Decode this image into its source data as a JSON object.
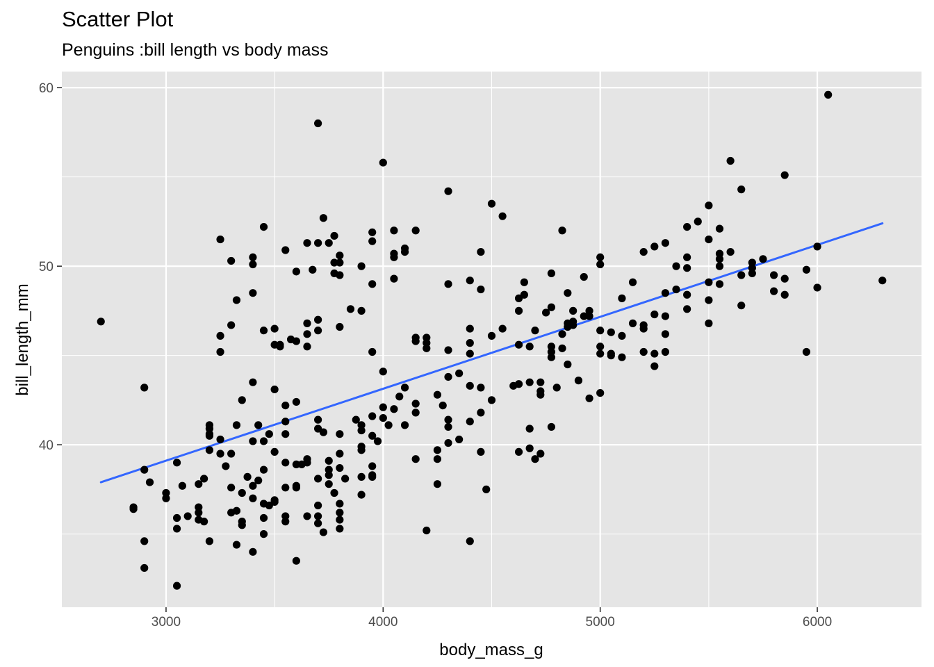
{
  "chart_data": {
    "type": "scatter",
    "title": "Scatter Plot",
    "subtitle": "Penguins :bill length vs body mass",
    "xlabel": "body_mass_g",
    "ylabel": "bill_length_mm",
    "xlim": [
      2520,
      6480
    ],
    "ylim": [
      30.9,
      60.9
    ],
    "xticks": [
      3000,
      4000,
      5000,
      6000
    ],
    "yticks": [
      40,
      50,
      60
    ],
    "grid": true,
    "colors": {
      "panel": "#e5e5e5",
      "grid": "#ffffff",
      "points": "#000000",
      "trend": "#3366ff"
    },
    "trend_line": {
      "x": [
        2700,
        6300
      ],
      "y": [
        37.9,
        52.4
      ]
    },
    "points": [
      [
        2700,
        46.9
      ],
      [
        2850,
        36.5
      ],
      [
        2850,
        36.4
      ],
      [
        2900,
        43.2
      ],
      [
        2900,
        38.6
      ],
      [
        2900,
        34.6
      ],
      [
        2900,
        33.1
      ],
      [
        2925,
        37.9
      ],
      [
        3000,
        37.3
      ],
      [
        3000,
        37.0
      ],
      [
        3050,
        39.0
      ],
      [
        3050,
        35.9
      ],
      [
        3050,
        35.3
      ],
      [
        3050,
        32.1
      ],
      [
        3075,
        37.7
      ],
      [
        3100,
        36.0
      ],
      [
        3150,
        37.8
      ],
      [
        3150,
        36.5
      ],
      [
        3150,
        36.2
      ],
      [
        3150,
        35.8
      ],
      [
        3175,
        38.1
      ],
      [
        3175,
        35.7
      ],
      [
        3200,
        41.1
      ],
      [
        3200,
        40.9
      ],
      [
        3200,
        40.6
      ],
      [
        3200,
        40.5
      ],
      [
        3200,
        39.7
      ],
      [
        3200,
        34.6
      ],
      [
        3250,
        51.5
      ],
      [
        3250,
        46.1
      ],
      [
        3250,
        45.2
      ],
      [
        3250,
        40.3
      ],
      [
        3250,
        39.5
      ],
      [
        3275,
        38.8
      ],
      [
        3300,
        50.3
      ],
      [
        3300,
        46.7
      ],
      [
        3300,
        39.5
      ],
      [
        3300,
        37.6
      ],
      [
        3300,
        36.2
      ],
      [
        3325,
        48.1
      ],
      [
        3325,
        41.1
      ],
      [
        3325,
        36.3
      ],
      [
        3325,
        34.4
      ],
      [
        3350,
        42.5
      ],
      [
        3350,
        37.3
      ],
      [
        3350,
        35.7
      ],
      [
        3350,
        35.5
      ],
      [
        3375,
        38.2
      ],
      [
        3400,
        50.5
      ],
      [
        3400,
        50.1
      ],
      [
        3400,
        48.5
      ],
      [
        3400,
        43.5
      ],
      [
        3400,
        40.2
      ],
      [
        3400,
        37.7
      ],
      [
        3400,
        37.0
      ],
      [
        3400,
        34.0
      ],
      [
        3425,
        41.1
      ],
      [
        3425,
        38.0
      ],
      [
        3450,
        52.2
      ],
      [
        3450,
        46.4
      ],
      [
        3450,
        40.2
      ],
      [
        3450,
        38.6
      ],
      [
        3450,
        36.7
      ],
      [
        3450,
        35.9
      ],
      [
        3450,
        35.0
      ],
      [
        3475,
        40.6
      ],
      [
        3475,
        36.6
      ],
      [
        3500,
        46.5
      ],
      [
        3500,
        45.6
      ],
      [
        3500,
        43.1
      ],
      [
        3500,
        39.6
      ],
      [
        3500,
        36.9
      ],
      [
        3500,
        36.8
      ],
      [
        3525,
        45.5
      ],
      [
        3525,
        45.6
      ],
      [
        3550,
        50.9
      ],
      [
        3550,
        42.2
      ],
      [
        3550,
        41.3
      ],
      [
        3550,
        40.6
      ],
      [
        3550,
        39.0
      ],
      [
        3550,
        37.6
      ],
      [
        3550,
        36.0
      ],
      [
        3550,
        35.7
      ],
      [
        3575,
        45.9
      ],
      [
        3600,
        49.7
      ],
      [
        3600,
        45.8
      ],
      [
        3600,
        42.4
      ],
      [
        3600,
        38.9
      ],
      [
        3600,
        37.7
      ],
      [
        3600,
        37.6
      ],
      [
        3600,
        33.5
      ],
      [
        3625,
        38.9
      ],
      [
        3650,
        51.3
      ],
      [
        3650,
        46.8
      ],
      [
        3650,
        46.2
      ],
      [
        3650,
        45.5
      ],
      [
        3650,
        39.2
      ],
      [
        3650,
        39.0
      ],
      [
        3650,
        36.0
      ],
      [
        3675,
        49.8
      ],
      [
        3700,
        58.0
      ],
      [
        3700,
        51.3
      ],
      [
        3700,
        47.0
      ],
      [
        3700,
        46.4
      ],
      [
        3700,
        41.4
      ],
      [
        3700,
        40.9
      ],
      [
        3700,
        38.1
      ],
      [
        3700,
        36.6
      ],
      [
        3700,
        36.0
      ],
      [
        3700,
        35.6
      ],
      [
        3725,
        52.7
      ],
      [
        3725,
        40.7
      ],
      [
        3725,
        35.1
      ],
      [
        3750,
        51.3
      ],
      [
        3750,
        39.1
      ],
      [
        3750,
        38.6
      ],
      [
        3750,
        38.3
      ],
      [
        3750,
        37.8
      ],
      [
        3775,
        51.7
      ],
      [
        3775,
        50.2
      ],
      [
        3775,
        49.6
      ],
      [
        3775,
        37.3
      ],
      [
        3800,
        50.6
      ],
      [
        3800,
        50.2
      ],
      [
        3800,
        49.5
      ],
      [
        3800,
        46.6
      ],
      [
        3800,
        40.6
      ],
      [
        3800,
        39.5
      ],
      [
        3800,
        38.7
      ],
      [
        3800,
        36.7
      ],
      [
        3800,
        36.2
      ],
      [
        3800,
        35.8
      ],
      [
        3800,
        35.3
      ],
      [
        3825,
        38.1
      ],
      [
        3850,
        47.6
      ],
      [
        3875,
        41.4
      ],
      [
        3900,
        50.0
      ],
      [
        3900,
        47.5
      ],
      [
        3900,
        41.1
      ],
      [
        3900,
        40.8
      ],
      [
        3900,
        39.9
      ],
      [
        3900,
        39.7
      ],
      [
        3900,
        38.2
      ],
      [
        3900,
        37.2
      ],
      [
        3950,
        51.9
      ],
      [
        3950,
        51.4
      ],
      [
        3950,
        49.0
      ],
      [
        3950,
        45.2
      ],
      [
        3950,
        41.6
      ],
      [
        3950,
        40.5
      ],
      [
        3950,
        38.8
      ],
      [
        3950,
        38.3
      ],
      [
        3950,
        38.2
      ],
      [
        3975,
        40.2
      ],
      [
        4000,
        55.8
      ],
      [
        4000,
        44.1
      ],
      [
        4000,
        42.1
      ],
      [
        4000,
        41.5
      ],
      [
        4025,
        41.1
      ],
      [
        4050,
        52.0
      ],
      [
        4050,
        50.7
      ],
      [
        4050,
        50.5
      ],
      [
        4050,
        49.3
      ],
      [
        4050,
        42.0
      ],
      [
        4075,
        42.7
      ],
      [
        4100,
        51.0
      ],
      [
        4100,
        50.8
      ],
      [
        4100,
        43.2
      ],
      [
        4100,
        41.1
      ],
      [
        4150,
        52.0
      ],
      [
        4150,
        46.0
      ],
      [
        4150,
        45.8
      ],
      [
        4150,
        42.3
      ],
      [
        4150,
        41.8
      ],
      [
        4150,
        39.2
      ],
      [
        4200,
        46.0
      ],
      [
        4200,
        45.7
      ],
      [
        4200,
        45.4
      ],
      [
        4200,
        35.2
      ],
      [
        4250,
        42.8
      ],
      [
        4250,
        39.7
      ],
      [
        4250,
        39.2
      ],
      [
        4250,
        37.8
      ],
      [
        4275,
        42.2
      ],
      [
        4300,
        54.2
      ],
      [
        4300,
        49.0
      ],
      [
        4300,
        45.3
      ],
      [
        4300,
        43.8
      ],
      [
        4300,
        41.4
      ],
      [
        4300,
        41.0
      ],
      [
        4300,
        40.1
      ],
      [
        4350,
        44.0
      ],
      [
        4350,
        40.3
      ],
      [
        4400,
        49.2
      ],
      [
        4400,
        46.5
      ],
      [
        4400,
        45.7
      ],
      [
        4400,
        45.1
      ],
      [
        4400,
        43.3
      ],
      [
        4400,
        41.3
      ],
      [
        4400,
        34.6
      ],
      [
        4450,
        50.8
      ],
      [
        4450,
        48.7
      ],
      [
        4450,
        43.2
      ],
      [
        4450,
        41.8
      ],
      [
        4450,
        39.6
      ],
      [
        4475,
        37.5
      ],
      [
        4500,
        53.5
      ],
      [
        4500,
        46.1
      ],
      [
        4500,
        42.5
      ],
      [
        4550,
        52.8
      ],
      [
        4550,
        46.5
      ],
      [
        4600,
        43.3
      ],
      [
        4625,
        48.2
      ],
      [
        4625,
        47.5
      ],
      [
        4625,
        45.6
      ],
      [
        4625,
        43.4
      ],
      [
        4625,
        39.6
      ],
      [
        4650,
        48.4
      ],
      [
        4650,
        49.1
      ],
      [
        4675,
        45.5
      ],
      [
        4675,
        43.5
      ],
      [
        4675,
        40.9
      ],
      [
        4675,
        39.8
      ],
      [
        4700,
        39.2
      ],
      [
        4700,
        46.4
      ],
      [
        4725,
        43.5
      ],
      [
        4725,
        43.0
      ],
      [
        4725,
        42.8
      ],
      [
        4725,
        39.5
      ],
      [
        4750,
        47.4
      ],
      [
        4775,
        49.6
      ],
      [
        4775,
        47.7
      ],
      [
        4775,
        45.5
      ],
      [
        4775,
        45.2
      ],
      [
        4775,
        44.9
      ],
      [
        4775,
        41.0
      ],
      [
        4800,
        43.2
      ],
      [
        4825,
        52.0
      ],
      [
        4825,
        46.2
      ],
      [
        4825,
        45.4
      ],
      [
        4850,
        48.5
      ],
      [
        4850,
        46.8
      ],
      [
        4850,
        46.6
      ],
      [
        4850,
        44.5
      ],
      [
        4875,
        46.9
      ],
      [
        4875,
        47.5
      ],
      [
        4875,
        46.7
      ],
      [
        4900,
        43.6
      ],
      [
        4925,
        49.4
      ],
      [
        4925,
        47.2
      ],
      [
        4950,
        47.5
      ],
      [
        4950,
        47.2
      ],
      [
        4950,
        42.6
      ],
      [
        5000,
        50.5
      ],
      [
        5000,
        50.1
      ],
      [
        5000,
        46.4
      ],
      [
        5000,
        45.5
      ],
      [
        5000,
        45.1
      ],
      [
        5000,
        42.9
      ],
      [
        5050,
        46.3
      ],
      [
        5050,
        45.1
      ],
      [
        5050,
        45.0
      ],
      [
        5100,
        48.2
      ],
      [
        5100,
        46.1
      ],
      [
        5100,
        44.9
      ],
      [
        5150,
        49.1
      ],
      [
        5150,
        46.8
      ],
      [
        5200,
        50.8
      ],
      [
        5200,
        46.7
      ],
      [
        5200,
        46.5
      ],
      [
        5200,
        45.2
      ],
      [
        5250,
        51.1
      ],
      [
        5250,
        47.3
      ],
      [
        5250,
        45.1
      ],
      [
        5250,
        44.4
      ],
      [
        5300,
        51.3
      ],
      [
        5300,
        48.5
      ],
      [
        5300,
        47.2
      ],
      [
        5300,
        46.2
      ],
      [
        5300,
        45.2
      ],
      [
        5350,
        50.0
      ],
      [
        5350,
        48.7
      ],
      [
        5400,
        52.2
      ],
      [
        5400,
        50.5
      ],
      [
        5400,
        49.9
      ],
      [
        5400,
        48.4
      ],
      [
        5400,
        47.6
      ],
      [
        5450,
        52.5
      ],
      [
        5500,
        53.4
      ],
      [
        5500,
        51.5
      ],
      [
        5500,
        49.1
      ],
      [
        5500,
        48.1
      ],
      [
        5500,
        46.8
      ],
      [
        5550,
        52.1
      ],
      [
        5550,
        50.7
      ],
      [
        5550,
        50.4
      ],
      [
        5550,
        50.0
      ],
      [
        5550,
        49.0
      ],
      [
        5600,
        55.9
      ],
      [
        5600,
        50.8
      ],
      [
        5650,
        54.3
      ],
      [
        5650,
        49.5
      ],
      [
        5650,
        47.8
      ],
      [
        5700,
        50.2
      ],
      [
        5700,
        49.9
      ],
      [
        5700,
        49.6
      ],
      [
        5750,
        50.4
      ],
      [
        5800,
        49.5
      ],
      [
        5800,
        48.6
      ],
      [
        5850,
        55.1
      ],
      [
        5850,
        49.3
      ],
      [
        5850,
        48.4
      ],
      [
        5950,
        49.8
      ],
      [
        5950,
        45.2
      ],
      [
        6000,
        51.1
      ],
      [
        6000,
        48.8
      ],
      [
        6050,
        59.6
      ],
      [
        6300,
        49.2
      ]
    ]
  }
}
